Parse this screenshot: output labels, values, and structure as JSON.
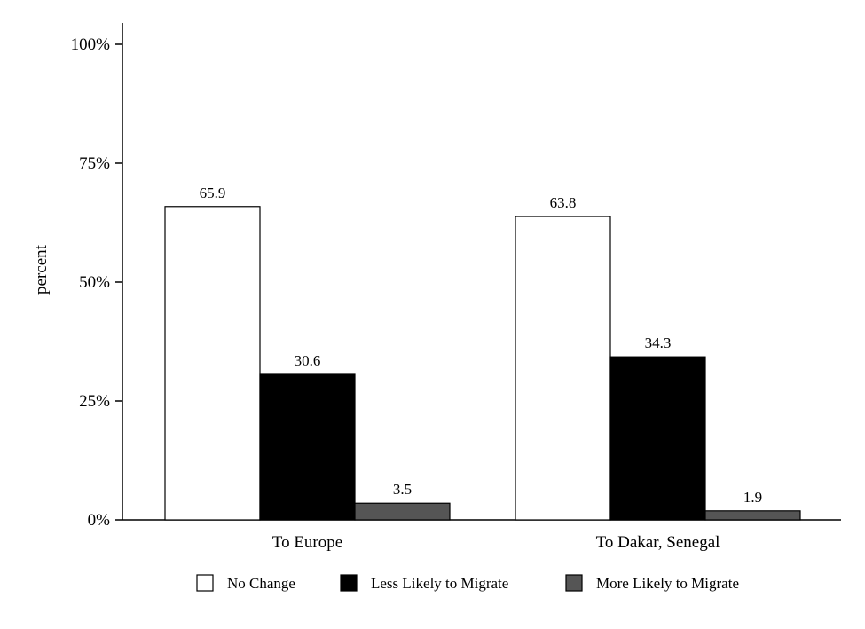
{
  "chart_data": {
    "type": "bar",
    "title": "",
    "xlabel": "",
    "ylabel": "percent",
    "ylim": [
      0,
      100
    ],
    "yticks": [
      {
        "value": 0,
        "label": "0%"
      },
      {
        "value": 25,
        "label": "25%"
      },
      {
        "value": 50,
        "label": "50%"
      },
      {
        "value": 75,
        "label": "75%"
      },
      {
        "value": 100,
        "label": "100%"
      }
    ],
    "categories": [
      "To Europe",
      "To Dakar, Senegal"
    ],
    "series": [
      {
        "name": "No Change",
        "color": "#ffffff",
        "values": [
          65.9,
          63.8
        ],
        "labels": [
          "65.9",
          "63.8"
        ]
      },
      {
        "name": "Less Likely to Migrate",
        "color": "#000000",
        "values": [
          30.6,
          34.3
        ],
        "labels": [
          "30.6",
          "34.3"
        ]
      },
      {
        "name": "More Likely to Migrate",
        "color": "#555555",
        "values": [
          3.5,
          1.9
        ],
        "labels": [
          "3.5",
          "1.9"
        ]
      }
    ],
    "grid": false,
    "legend_position": "bottom"
  }
}
